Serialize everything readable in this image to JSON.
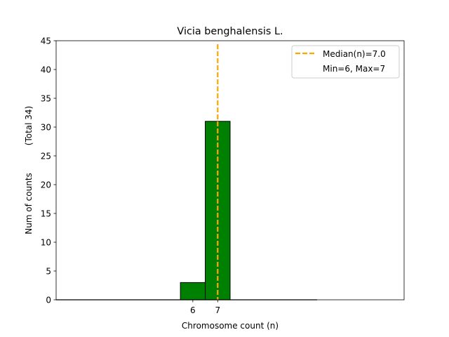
{
  "chart_data": {
    "type": "bar",
    "title": "Vicia benghalensis L.",
    "xlabel": "Chromosome count (n)",
    "ylabel": "Num of counts",
    "ylabel_total": "(Total 34)",
    "bars": [
      {
        "x": 6,
        "value": 3
      },
      {
        "x": 7,
        "value": 31
      }
    ],
    "bar_color": "#008000",
    "xticks": [
      6,
      7
    ],
    "yticks": [
      0,
      5,
      10,
      15,
      20,
      25,
      30,
      35,
      40,
      45
    ],
    "xlim": [
      0.5,
      14.5
    ],
    "ylim": [
      0,
      45
    ],
    "median": 7.0,
    "median_color": "#ffa500",
    "legend": {
      "position": "top-right",
      "median_label": "Median(n)=7.0",
      "range_label": "Min=6, Max=7"
    }
  }
}
